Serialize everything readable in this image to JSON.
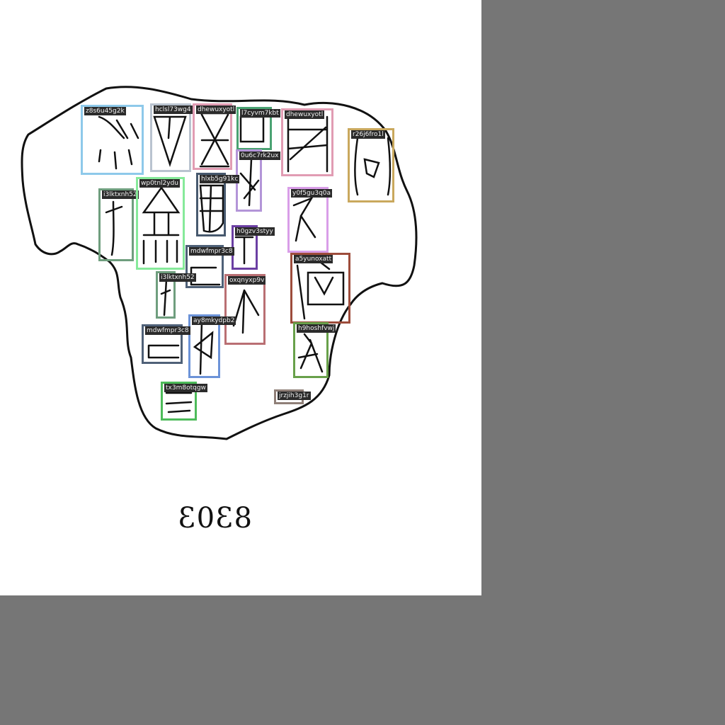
{
  "plate_number": "8303",
  "annotations": [
    {
      "label": "z8s6u45g2k",
      "color": "#8ec9ea"
    },
    {
      "label": "hclsl73wg4",
      "color": "#b9c3cf"
    },
    {
      "label": "dhewuxyotl",
      "color": "#e19cb3"
    },
    {
      "label": "l7cyvm7kbt",
      "color": "#4aa272"
    },
    {
      "label": "dhewuxyotl",
      "color": "#e19cb3"
    },
    {
      "label": "r26j6fro1l",
      "color": "#c9a85d"
    },
    {
      "label": "0u6c7rk2ux",
      "color": "#b395d8"
    },
    {
      "label": "hlxb5g91kc",
      "color": "#47596e"
    },
    {
      "label": "i3lktxnh52",
      "color": "#6f9e7e"
    },
    {
      "label": "wp0tnl2ydu",
      "color": "#86ea9a"
    },
    {
      "label": "y0f5gu3q0a",
      "color": "#d99ee8"
    },
    {
      "label": "h0gzv3styy",
      "color": "#6b3fa3"
    },
    {
      "label": "mdwfmpr3c8",
      "color": "#4f6178"
    },
    {
      "label": "a5yunoxatt",
      "color": "#9d4c3b"
    },
    {
      "label": "i3lktxnh52",
      "color": "#6f9e7e"
    },
    {
      "label": "oxqnyxp9v",
      "color": "#b96f73"
    },
    {
      "label": "ay8mkydpb2",
      "color": "#6c93d8"
    },
    {
      "label": "mdwfmpr3c8",
      "color": "#4f6178"
    },
    {
      "label": "h9hoshfvwj",
      "color": "#68a04a"
    },
    {
      "label": "tx3m8otqgw",
      "color": "#4dbb5a"
    },
    {
      "label": "jrzjih3g1r",
      "color": "#8f7f78"
    }
  ]
}
